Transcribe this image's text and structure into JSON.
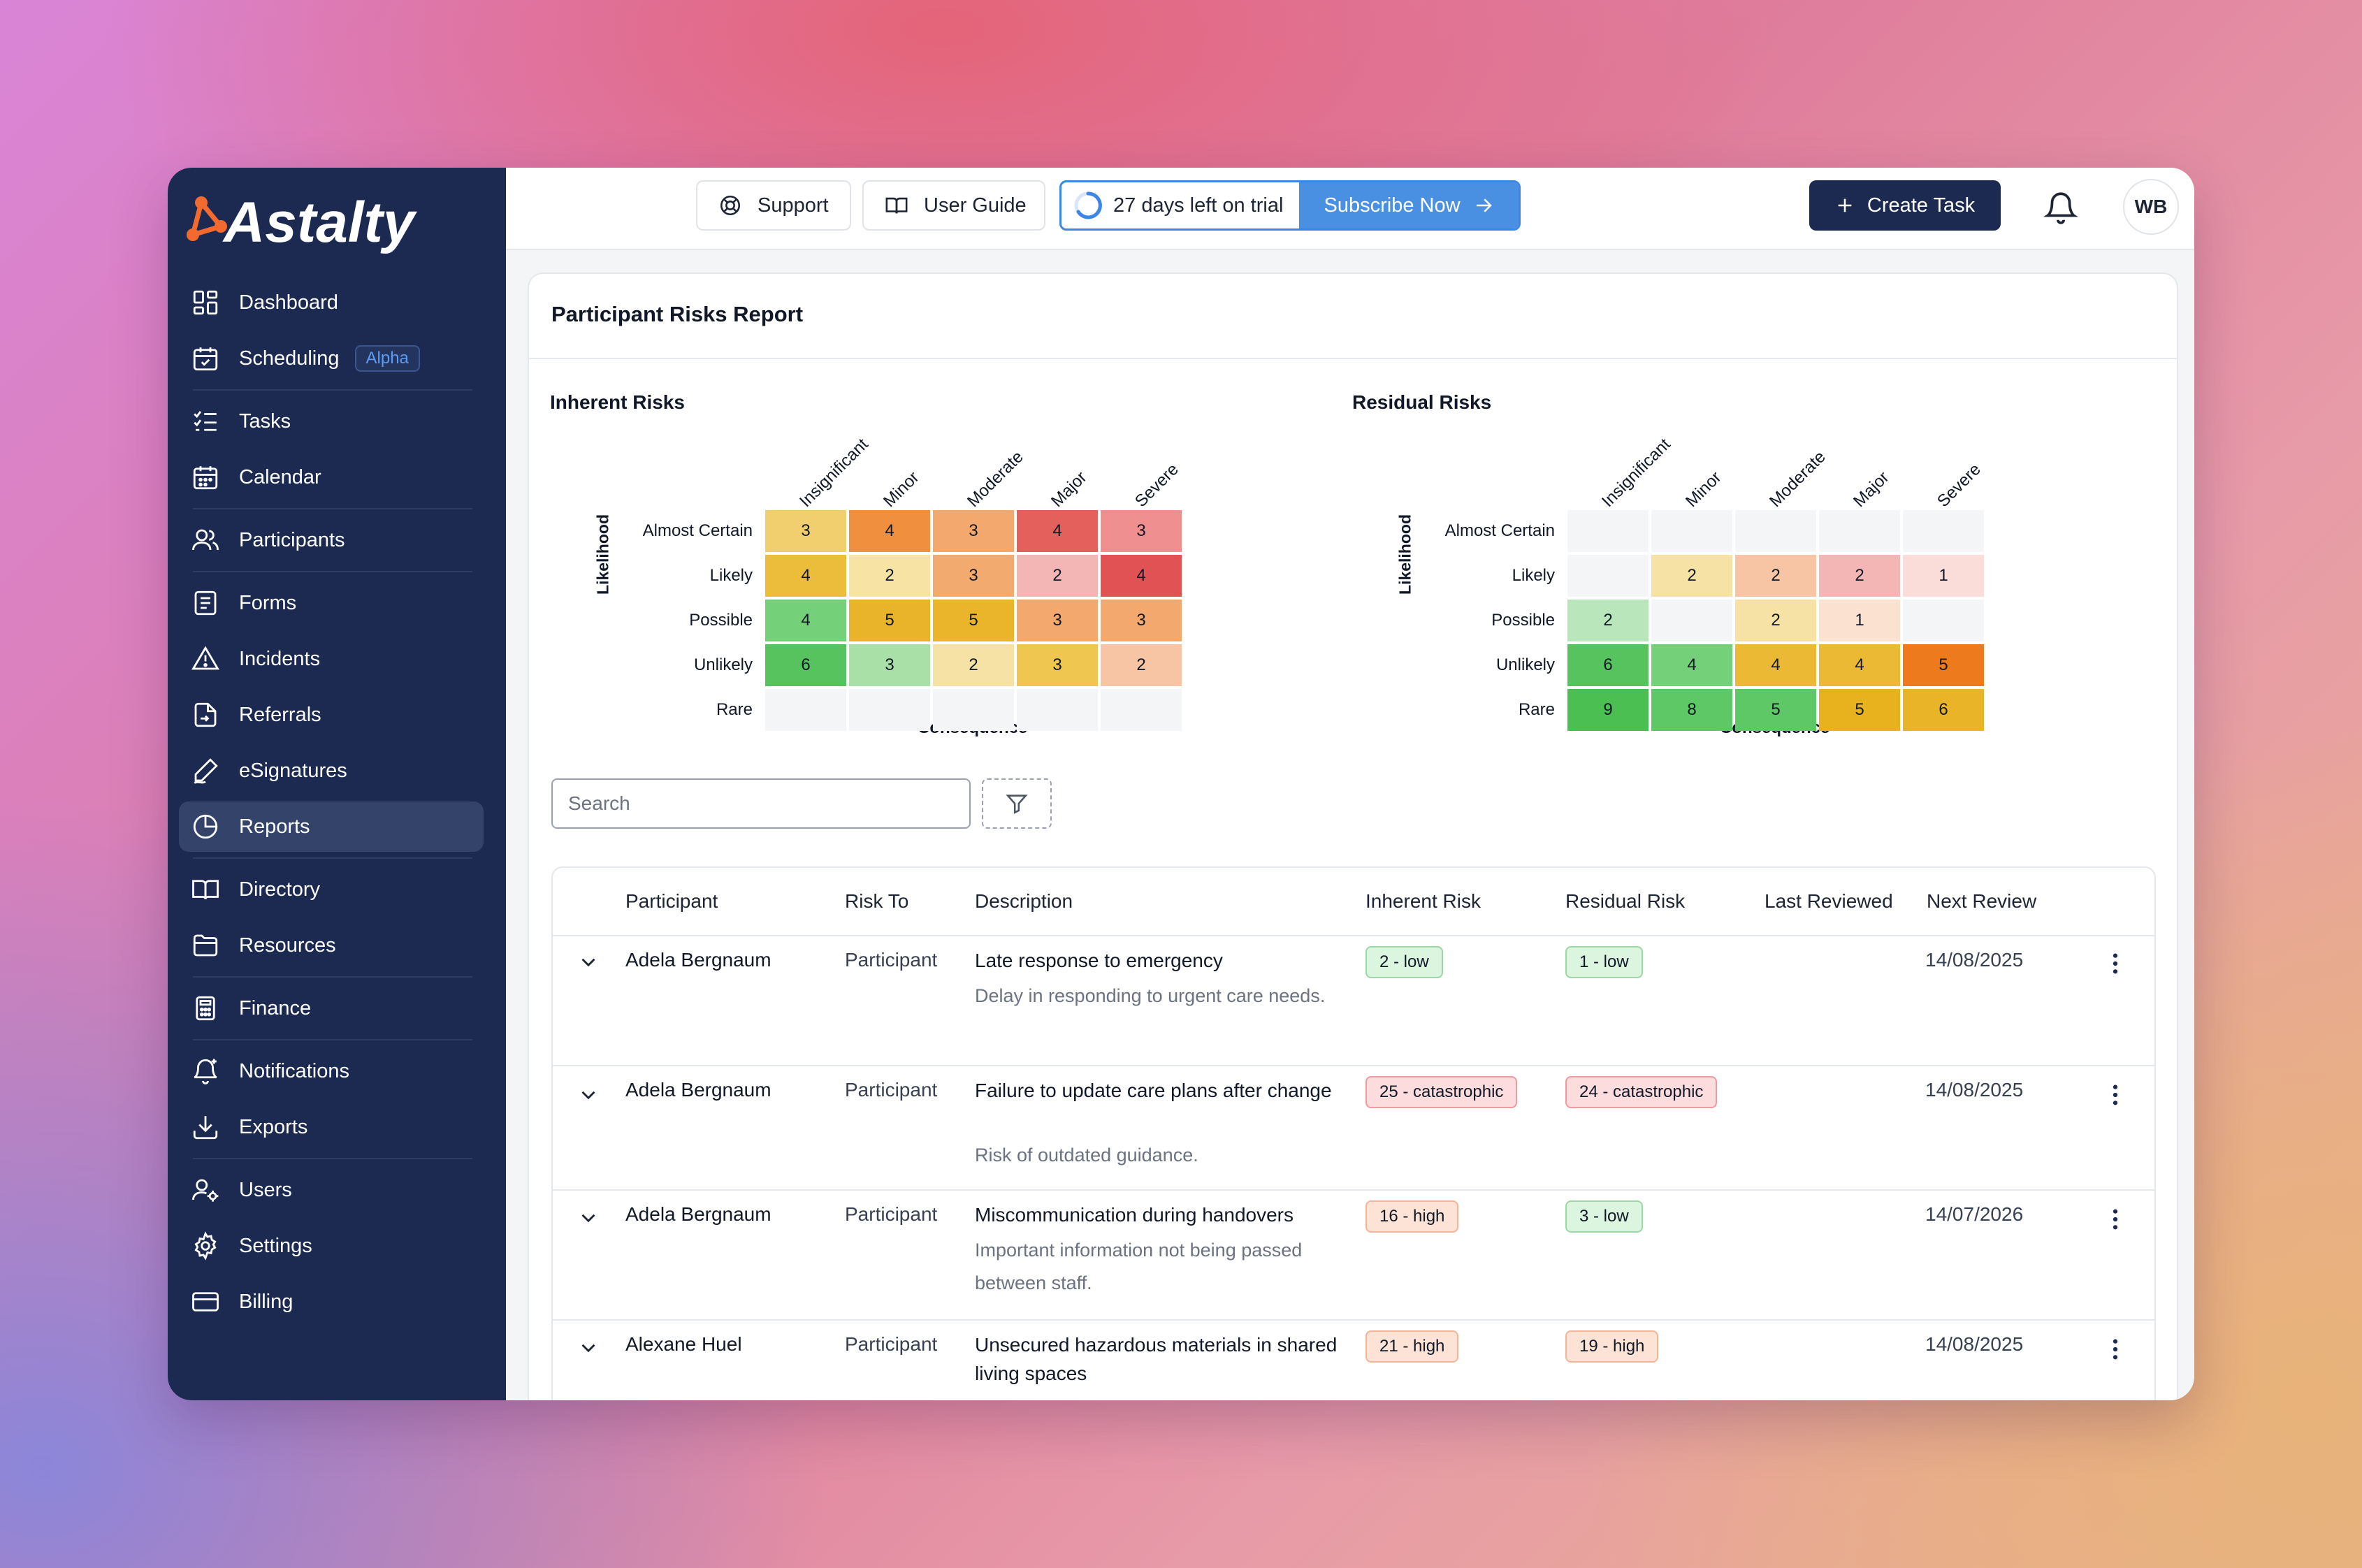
{
  "brand": {
    "name": "Astalty"
  },
  "sidebar": {
    "items": [
      {
        "label": "Dashboard"
      },
      {
        "label": "Scheduling",
        "badge": "Alpha"
      },
      {
        "label": "Tasks"
      },
      {
        "label": "Calendar"
      },
      {
        "label": "Participants"
      },
      {
        "label": "Forms"
      },
      {
        "label": "Incidents"
      },
      {
        "label": "Referrals"
      },
      {
        "label": "eSignatures"
      },
      {
        "label": "Reports"
      },
      {
        "label": "Directory"
      },
      {
        "label": "Resources"
      },
      {
        "label": "Finance"
      },
      {
        "label": "Notifications"
      },
      {
        "label": "Exports"
      },
      {
        "label": "Users"
      },
      {
        "label": "Settings"
      },
      {
        "label": "Billing"
      }
    ]
  },
  "topbar": {
    "support": "Support",
    "user_guide": "User Guide",
    "trial_text": "27 days left on trial",
    "subscribe": "Subscribe Now",
    "create_task": "Create Task",
    "avatar_initials": "WB"
  },
  "report": {
    "title": "Participant Risks Report",
    "matrix_columns": [
      "Insignificant",
      "Minor",
      "Moderate",
      "Major",
      "Severe"
    ],
    "matrix_rows": [
      "Almost Certain",
      "Likely",
      "Possible",
      "Unlikely",
      "Rare"
    ],
    "y_axis": "Likelihood",
    "x_axis": "Consequence",
    "inherent": {
      "title": "Inherent Risks",
      "cells": [
        [
          3,
          4,
          3,
          4,
          3
        ],
        [
          4,
          2,
          3,
          2,
          4
        ],
        [
          4,
          5,
          5,
          3,
          3
        ],
        [
          6,
          3,
          2,
          3,
          2
        ],
        [
          null,
          null,
          null,
          null,
          null
        ]
      ],
      "colors": [
        [
          "#f1cf6f",
          "#f0903f",
          "#f3a96e",
          "#e4605d",
          "#ef8f8f"
        ],
        [
          "#ecbd3a",
          "#f7e4a4",
          "#f3aa6f",
          "#f4b6b5",
          "#e05253"
        ],
        [
          "#74d17a",
          "#e9b42a",
          "#eab52b",
          "#f3a96e",
          "#f3a96e"
        ],
        [
          "#57c35f",
          "#a9e0a8",
          "#f5e2a4",
          "#efc64f",
          "#f7c4a4"
        ],
        [
          "#f4f5f7",
          "#f4f5f7",
          "#f4f5f7",
          "#f4f5f7",
          "#f4f5f7"
        ]
      ]
    },
    "residual": {
      "title": "Residual Risks",
      "cells": [
        [
          null,
          null,
          null,
          null,
          null
        ],
        [
          null,
          2,
          2,
          2,
          1
        ],
        [
          2,
          null,
          2,
          1,
          null
        ],
        [
          6,
          4,
          4,
          4,
          5
        ],
        [
          9,
          8,
          5,
          5,
          6
        ]
      ],
      "colors": [
        [
          "#f4f5f7",
          "#f4f5f7",
          "#f4f5f7",
          "#f4f5f7",
          "#f4f5f7"
        ],
        [
          "#f4f5f7",
          "#f5e2a4",
          "#f7c4a4",
          "#f4b6b5",
          "#fadcd9"
        ],
        [
          "#b9e6ba",
          "#f4f5f7",
          "#f5e2a4",
          "#fbe1cf",
          "#f4f5f7"
        ],
        [
          "#57c35f",
          "#74d17a",
          "#ebb933",
          "#ebb933",
          "#ee7a1e"
        ],
        [
          "#4cbf53",
          "#5ec766",
          "#5ec766",
          "#e7b21e",
          "#e9b427"
        ]
      ]
    },
    "search_placeholder": "Search",
    "table": {
      "headers": [
        "Participant",
        "Risk To",
        "Description",
        "Inherent Risk",
        "Residual Risk",
        "Last Reviewed",
        "Next Review"
      ],
      "rows": [
        {
          "participant": "Adela Bergnaum",
          "risk_to": "Participant",
          "description": "Late response to emergency",
          "detail": "Delay in responding to urgent care needs.",
          "inherent": "2 - low",
          "inherent_level": "low",
          "residual": "1 - low",
          "residual_level": "low",
          "last_reviewed": "",
          "next_review": "14/08/2025"
        },
        {
          "participant": "Adela Bergnaum",
          "risk_to": "Participant",
          "description": "Failure to update care plans after change",
          "detail": "Risk of outdated guidance.",
          "inherent": "25 - catastrophic",
          "inherent_level": "catastrophic",
          "residual": "24 - catastrophic",
          "residual_level": "catastrophic",
          "last_reviewed": "",
          "next_review": "14/08/2025"
        },
        {
          "participant": "Adela Bergnaum",
          "risk_to": "Participant",
          "description": "Miscommunication during handovers",
          "detail": "Important information not being passed between staff.",
          "inherent": "16 - high",
          "inherent_level": "high",
          "residual": "3 - low",
          "residual_level": "low",
          "last_reviewed": "",
          "next_review": "14/07/2026"
        },
        {
          "participant": "Alexane Huel",
          "risk_to": "Participant",
          "description": "Unsecured hazardous materials in shared living spaces",
          "detail": "",
          "inherent": "21 - high",
          "inherent_level": "high",
          "residual": "19 - high",
          "residual_level": "high",
          "last_reviewed": "",
          "next_review": "14/08/2025"
        }
      ]
    }
  }
}
